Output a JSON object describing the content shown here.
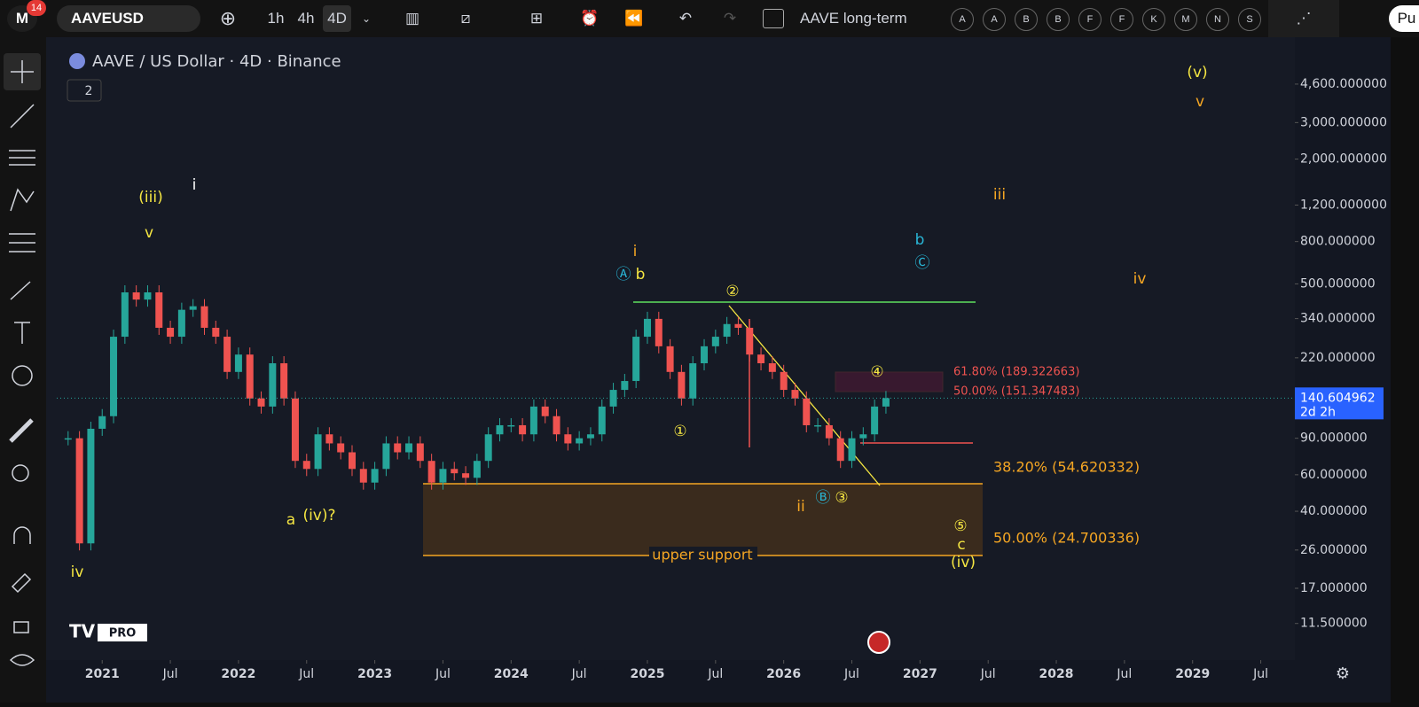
{
  "toolbar": {
    "badge": "14",
    "symbol": "AAVEUSD",
    "intervals": [
      "1h",
      "4h",
      "4D"
    ],
    "layout_name": "AAVE long-term",
    "alerts": [
      "A",
      "A",
      "B",
      "B",
      "F",
      "F",
      "K",
      "M",
      "N",
      "S"
    ],
    "publish": "Pu"
  },
  "legend": {
    "title": "AAVE / US Dollar · 4D · Binance",
    "collapsed_count": "2",
    "logo": "PRO"
  },
  "chart_data": {
    "type": "candlestick",
    "log_scale": true,
    "colors": {
      "up": "#26a69a",
      "down": "#ef5350"
    },
    "x": [
      "2020-10",
      "2020-11",
      "2020-12",
      "2021-01",
      "2021-02",
      "2021-03",
      "2021-04",
      "2021-05",
      "2021-06",
      "2021-07",
      "2021-08",
      "2021-09",
      "2021-10",
      "2021-11",
      "2021-12",
      "2022-01",
      "2022-02",
      "2022-03",
      "2022-04",
      "2022-05",
      "2022-06",
      "2022-07",
      "2022-08",
      "2022-09",
      "2022-10",
      "2022-11",
      "2022-12",
      "2023-01",
      "2023-02",
      "2023-03",
      "2023-04",
      "2023-05",
      "2023-06",
      "2023-07",
      "2023-08",
      "2023-09",
      "2023-10",
      "2023-11",
      "2023-12",
      "2024-01",
      "2024-02",
      "2024-03",
      "2024-04",
      "2024-05",
      "2024-06",
      "2024-07",
      "2024-08",
      "2024-09",
      "2024-10",
      "2024-11",
      "2024-12",
      "2025-01",
      "2025-02",
      "2025-03",
      "2025-04",
      "2025-05",
      "2025-06",
      "2025-07",
      "2025-08",
      "2025-09",
      "2025-10",
      "2025-11",
      "2025-12",
      "2026-01",
      "2026-02",
      "2026-03",
      "2026-04",
      "2026-05",
      "2026-06",
      "2026-07",
      "2026-08",
      "2026-09",
      "2026-10"
    ],
    "values": [
      90,
      28,
      100,
      115,
      278,
      455,
      420,
      455,
      307,
      278,
      375,
      390,
      307,
      278,
      188,
      228,
      140,
      128,
      207,
      140,
      70,
      64,
      94,
      85,
      77,
      64,
      55,
      64,
      85,
      77,
      85,
      70,
      55,
      64,
      61,
      58,
      70,
      94,
      104,
      104,
      94,
      128,
      115,
      94,
      85,
      90,
      94,
      128,
      154,
      170,
      278,
      339,
      250,
      188,
      140,
      207,
      250,
      278,
      320,
      307,
      228,
      207,
      188,
      154,
      140,
      104,
      104,
      90,
      70,
      90,
      94,
      128,
      140.6
    ],
    "last_price": 140.604962,
    "countdown": "2d 2h",
    "xlim": [
      "2020-09",
      "2029-10"
    ],
    "xticks": [
      {
        "value": "2021-01",
        "label": "2021"
      },
      {
        "value": "2021-07",
        "label": "Jul"
      },
      {
        "value": "2022-01",
        "label": "2022"
      },
      {
        "value": "2022-07",
        "label": "Jul"
      },
      {
        "value": "2023-01",
        "label": "2023"
      },
      {
        "value": "2023-07",
        "label": "Jul"
      },
      {
        "value": "2024-01",
        "label": "2024"
      },
      {
        "value": "2024-07",
        "label": "Jul"
      },
      {
        "value": "2025-01",
        "label": "2025"
      },
      {
        "value": "2025-07",
        "label": "Jul"
      },
      {
        "value": "2026-01",
        "label": "2026"
      },
      {
        "value": "2026-07",
        "label": "Jul"
      },
      {
        "value": "2027-01",
        "label": "2027"
      },
      {
        "value": "2027-07",
        "label": "Jul"
      },
      {
        "value": "2028-01",
        "label": "2028"
      },
      {
        "value": "2028-07",
        "label": "Jul"
      },
      {
        "value": "2029-01",
        "label": "2029"
      },
      {
        "value": "2029-07",
        "label": "Jul"
      }
    ],
    "ylim": [
      7.66,
      7300
    ],
    "yticks": [
      {
        "value": 4600,
        "label": "4,600.000000"
      },
      {
        "value": 3000,
        "label": "3,000.000000"
      },
      {
        "value": 2000,
        "label": "2,000.000000"
      },
      {
        "value": 1200,
        "label": "1,200.000000"
      },
      {
        "value": 800,
        "label": "800.000000"
      },
      {
        "value": 500,
        "label": "500.000000"
      },
      {
        "value": 340,
        "label": "340.000000"
      },
      {
        "value": 220,
        "label": "220.000000"
      },
      {
        "value": 90,
        "label": "90.000000"
      },
      {
        "value": 60,
        "label": "60.000000"
      },
      {
        "value": 40,
        "label": "40.000000"
      },
      {
        "value": 26,
        "label": "26.000000"
      },
      {
        "value": 17,
        "label": "17.000000"
      },
      {
        "value": 11.5,
        "label": "11.500000"
      }
    ],
    "annotations": [
      "(v)",
      "v",
      "iii",
      "iv",
      "b",
      "Ⓒ",
      "(iii)",
      "v",
      "i",
      "i",
      "Ⓐ",
      "b",
      "②",
      "④",
      "①",
      "Ⓑ",
      "③",
      "ii",
      "a",
      "(iv)?",
      "iv",
      "⑤",
      "c",
      "(iv)"
    ],
    "fib_labels": [
      "61.80% (189.322663)",
      "50.00% (151.347483)",
      "38.20% (54.620332)",
      "50.00% (24.700336)",
      "upper support"
    ]
  }
}
